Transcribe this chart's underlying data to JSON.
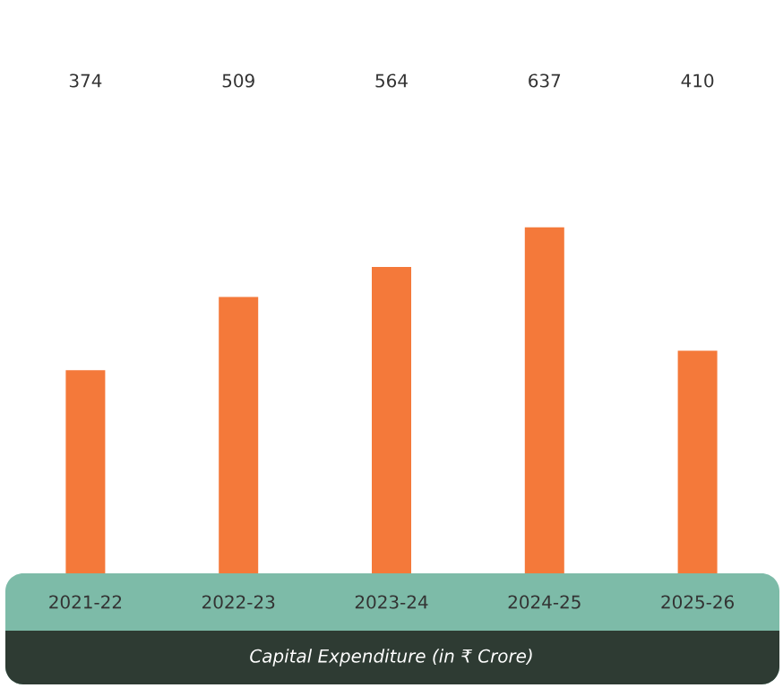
{
  "chart_data": {
    "type": "bar",
    "categories": [
      "2021-22",
      "2022-23",
      "2023-24",
      "2024-25",
      "2025-26"
    ],
    "values": [
      374,
      509,
      564,
      637,
      410
    ],
    "color": "#f4793a",
    "xlabel": "Capital Expenditure (in ₹ Crore)",
    "data_labels": true
  }
}
